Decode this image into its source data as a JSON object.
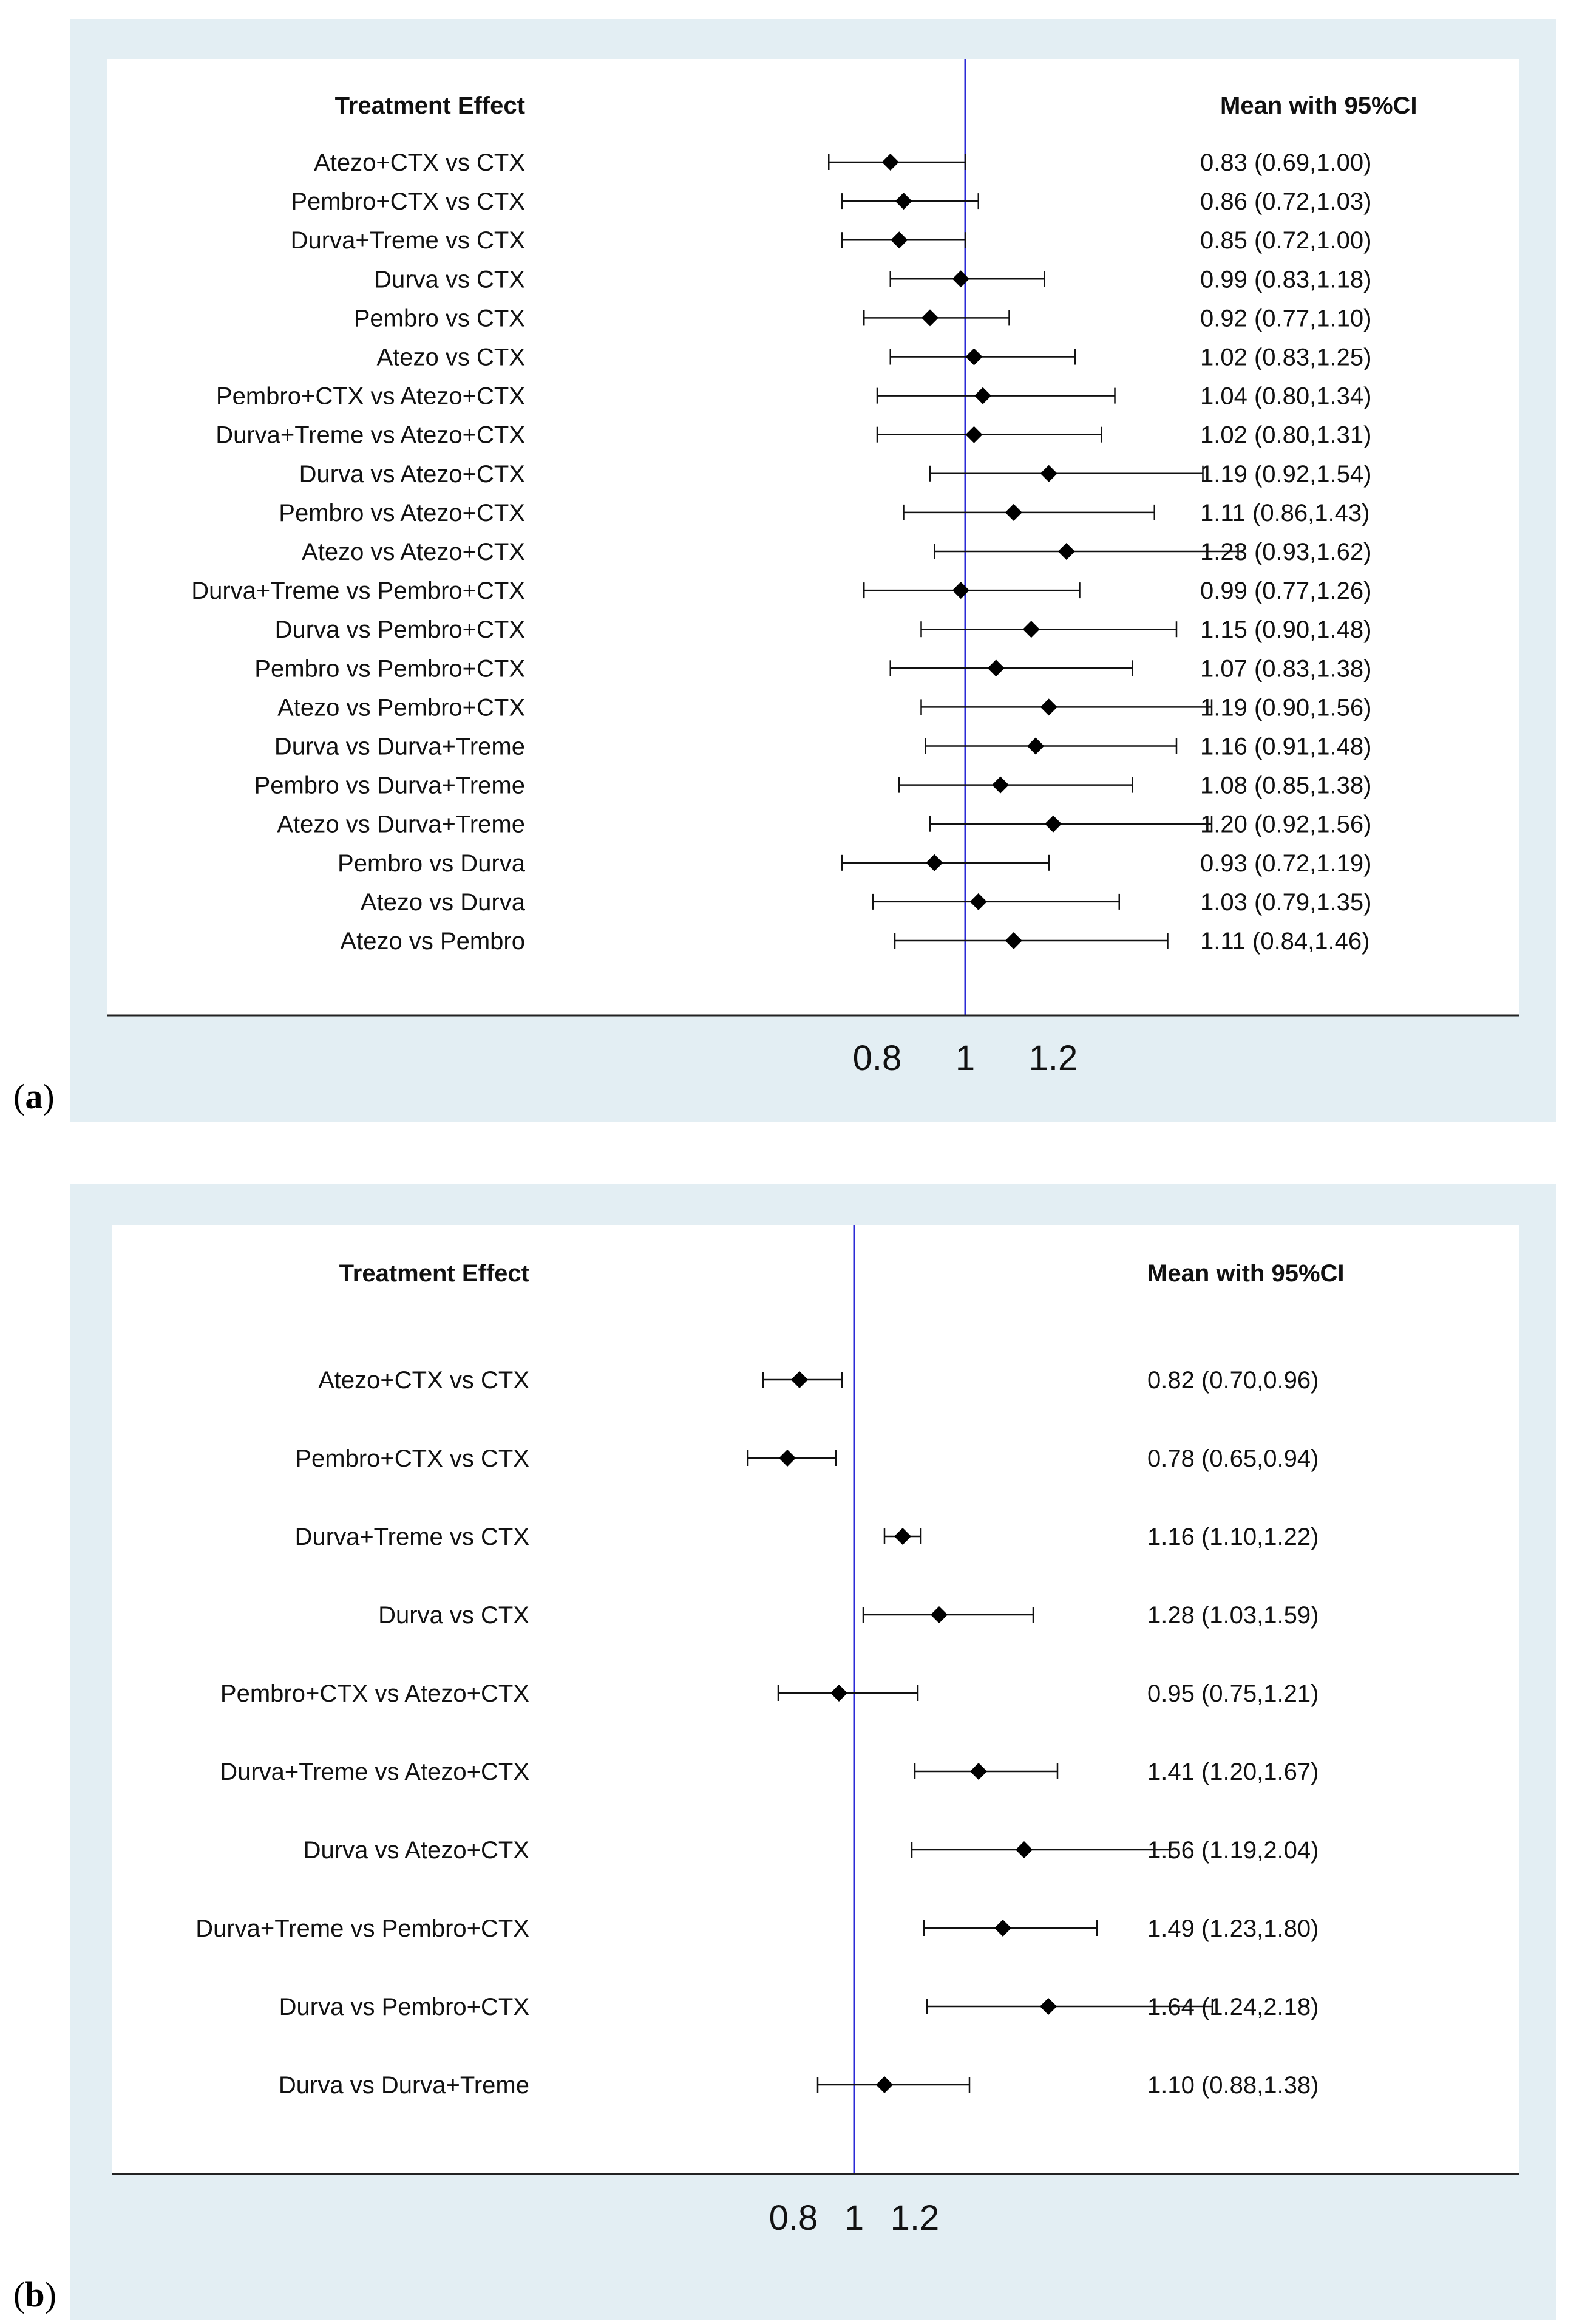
{
  "chart_data": [
    {
      "type": "forest",
      "panel_label": "a",
      "col_header_left": "Treatment Effect",
      "col_header_right": "Mean with 95%CI",
      "xticks": [
        0.8,
        1,
        1.2
      ],
      "xtick_labels": [
        "0.8",
        "1",
        "1.2"
      ],
      "reference_line": 1,
      "rows": [
        {
          "label": "Atezo+CTX vs CTX",
          "mean": 0.83,
          "lower": 0.69,
          "upper": 1.0,
          "text": "0.83 (0.69,1.00)"
        },
        {
          "label": "Pembro+CTX vs CTX",
          "mean": 0.86,
          "lower": 0.72,
          "upper": 1.03,
          "text": "0.86 (0.72,1.03)"
        },
        {
          "label": "Durva+Treme vs CTX",
          "mean": 0.85,
          "lower": 0.72,
          "upper": 1.0,
          "text": "0.85 (0.72,1.00)"
        },
        {
          "label": "Durva vs CTX",
          "mean": 0.99,
          "lower": 0.83,
          "upper": 1.18,
          "text": "0.99 (0.83,1.18)"
        },
        {
          "label": "Pembro vs CTX",
          "mean": 0.92,
          "lower": 0.77,
          "upper": 1.1,
          "text": "0.92 (0.77,1.10)"
        },
        {
          "label": "Atezo vs CTX",
          "mean": 1.02,
          "lower": 0.83,
          "upper": 1.25,
          "text": "1.02 (0.83,1.25)"
        },
        {
          "label": "Pembro+CTX vs Atezo+CTX",
          "mean": 1.04,
          "lower": 0.8,
          "upper": 1.34,
          "text": "1.04 (0.80,1.34)"
        },
        {
          "label": "Durva+Treme vs Atezo+CTX",
          "mean": 1.02,
          "lower": 0.8,
          "upper": 1.31,
          "text": "1.02 (0.80,1.31)"
        },
        {
          "label": "Durva vs Atezo+CTX",
          "mean": 1.19,
          "lower": 0.92,
          "upper": 1.54,
          "text": "1.19 (0.92,1.54)"
        },
        {
          "label": "Pembro vs Atezo+CTX",
          "mean": 1.11,
          "lower": 0.86,
          "upper": 1.43,
          "text": "1.11 (0.86,1.43)"
        },
        {
          "label": "Atezo vs Atezo+CTX",
          "mean": 1.23,
          "lower": 0.93,
          "upper": 1.62,
          "text": "1.23 (0.93,1.62)"
        },
        {
          "label": "Durva+Treme vs Pembro+CTX",
          "mean": 0.99,
          "lower": 0.77,
          "upper": 1.26,
          "text": "0.99 (0.77,1.26)"
        },
        {
          "label": "Durva vs Pembro+CTX",
          "mean": 1.15,
          "lower": 0.9,
          "upper": 1.48,
          "text": "1.15 (0.90,1.48)"
        },
        {
          "label": "Pembro vs Pembro+CTX",
          "mean": 1.07,
          "lower": 0.83,
          "upper": 1.38,
          "text": "1.07 (0.83,1.38)"
        },
        {
          "label": "Atezo vs Pembro+CTX",
          "mean": 1.19,
          "lower": 0.9,
          "upper": 1.56,
          "text": "1.19 (0.90,1.56)"
        },
        {
          "label": "Durva vs Durva+Treme",
          "mean": 1.16,
          "lower": 0.91,
          "upper": 1.48,
          "text": "1.16 (0.91,1.48)"
        },
        {
          "label": "Pembro vs Durva+Treme",
          "mean": 1.08,
          "lower": 0.85,
          "upper": 1.38,
          "text": "1.08 (0.85,1.38)"
        },
        {
          "label": "Atezo vs Durva+Treme",
          "mean": 1.2,
          "lower": 0.92,
          "upper": 1.56,
          "text": "1.20 (0.92,1.56)"
        },
        {
          "label": "Pembro vs Durva",
          "mean": 0.93,
          "lower": 0.72,
          "upper": 1.19,
          "text": "0.93 (0.72,1.19)"
        },
        {
          "label": "Atezo vs Durva",
          "mean": 1.03,
          "lower": 0.79,
          "upper": 1.35,
          "text": "1.03 (0.79,1.35)"
        },
        {
          "label": "Atezo vs Pembro",
          "mean": 1.11,
          "lower": 0.84,
          "upper": 1.46,
          "text": "1.11 (0.84,1.46)"
        }
      ]
    },
    {
      "type": "forest",
      "panel_label": "b",
      "col_header_left": "Treatment Effect",
      "col_header_right": "Mean with 95%CI",
      "xticks": [
        0.8,
        1,
        1.2
      ],
      "xtick_labels": [
        "0.8",
        "1",
        "1.2"
      ],
      "reference_line": 1,
      "rows": [
        {
          "label": "Atezo+CTX vs CTX",
          "mean": 0.82,
          "lower": 0.7,
          "upper": 0.96,
          "text": "0.82 (0.70,0.96)"
        },
        {
          "label": "Pembro+CTX vs CTX",
          "mean": 0.78,
          "lower": 0.65,
          "upper": 0.94,
          "text": "0.78 (0.65,0.94)"
        },
        {
          "label": "Durva+Treme vs CTX",
          "mean": 1.16,
          "lower": 1.1,
          "upper": 1.22,
          "text": "1.16 (1.10,1.22)"
        },
        {
          "label": "Durva vs CTX",
          "mean": 1.28,
          "lower": 1.03,
          "upper": 1.59,
          "text": "1.28 (1.03,1.59)"
        },
        {
          "label": "Pembro+CTX vs Atezo+CTX",
          "mean": 0.95,
          "lower": 0.75,
          "upper": 1.21,
          "text": "0.95 (0.75,1.21)"
        },
        {
          "label": "Durva+Treme vs Atezo+CTX",
          "mean": 1.41,
          "lower": 1.2,
          "upper": 1.67,
          "text": "1.41 (1.20,1.67)"
        },
        {
          "label": "Durva vs Atezo+CTX",
          "mean": 1.56,
          "lower": 1.19,
          "upper": 2.04,
          "text": "1.56 (1.19,2.04)"
        },
        {
          "label": "Durva+Treme vs Pembro+CTX",
          "mean": 1.49,
          "lower": 1.23,
          "upper": 1.8,
          "text": "1.49 (1.23,1.80)"
        },
        {
          "label": "Durva vs Pembro+CTX",
          "mean": 1.64,
          "lower": 1.24,
          "upper": 2.18,
          "text": "1.64 (1.24,2.18)"
        },
        {
          "label": "Durva vs Durva+Treme",
          "mean": 1.1,
          "lower": 0.88,
          "upper": 1.38,
          "text": "1.10 (0.88,1.38)"
        }
      ]
    }
  ]
}
